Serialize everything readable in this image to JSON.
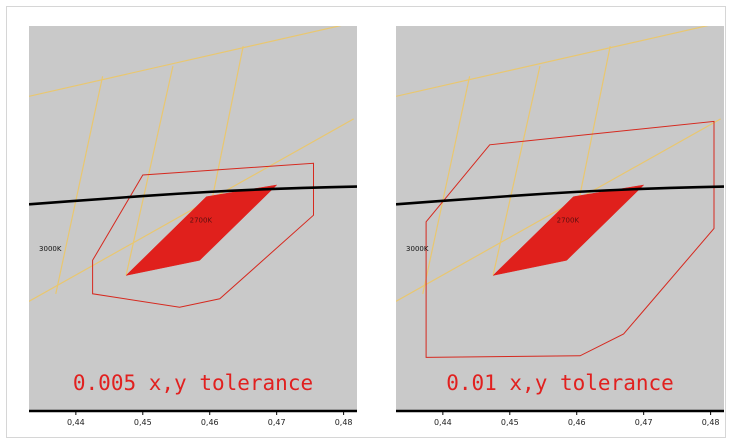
{
  "chart_data": [
    {
      "type": "scatter",
      "title": "0.005 x,y tolerance",
      "xlim": [
        0.433,
        0.482
      ],
      "x_ticks": [
        "0,44",
        "0,45",
        "0,46",
        "0,47",
        "0,48"
      ],
      "x_tick_values": [
        0.44,
        0.45,
        0.46,
        0.47,
        0.48
      ],
      "cct_labels": [
        {
          "text": "3000K",
          "x": 0.4345,
          "y": 0.3855
        },
        {
          "text": "2700K",
          "x": 0.457,
          "y": 0.4025
        }
      ],
      "planckian_locus": [
        [
          0.433,
          0.4135
        ],
        [
          0.445,
          0.417
        ],
        [
          0.455,
          0.4198
        ],
        [
          0.465,
          0.422
        ],
        [
          0.474,
          0.4233
        ],
        [
          0.482,
          0.4241
        ]
      ],
      "target_quadrangle": [
        [
          0.4475,
          0.371
        ],
        [
          0.4585,
          0.38
        ],
        [
          0.47,
          0.425
        ],
        [
          0.4595,
          0.418
        ]
      ],
      "tolerance_polygon": [
        [
          0.4425,
          0.38
        ],
        [
          0.4425,
          0.36
        ],
        [
          0.4555,
          0.352
        ],
        [
          0.4615,
          0.357
        ],
        [
          0.4755,
          0.407
        ],
        [
          0.4755,
          0.438
        ],
        [
          0.45,
          0.431
        ],
        [
          0.4425,
          0.38
        ]
      ],
      "grid_lines": [
        [
          [
            0.433,
            0.3555
          ],
          [
            0.4815,
            0.4645
          ]
        ],
        [
          [
            0.433,
            0.478
          ],
          [
            0.4815,
            0.522
          ]
        ],
        [
          [
            0.437,
            0.36
          ],
          [
            0.444,
            0.49
          ]
        ],
        [
          [
            0.4475,
            0.371
          ],
          [
            0.4545,
            0.496
          ]
        ],
        [
          [
            0.4585,
            0.38
          ],
          [
            0.465,
            0.508
          ]
        ]
      ],
      "colors": {
        "background": "#c9c9c9",
        "locus": "#000000",
        "grid": "#e9c770",
        "tolerance": "#d6291f",
        "target": "#e0201c",
        "caption": "#e1201f"
      }
    },
    {
      "type": "scatter",
      "title": "0.01 x,y tolerance",
      "xlim": [
        0.433,
        0.482
      ],
      "x_ticks": [
        "0,44",
        "0,45",
        "0,46",
        "0,47",
        "0,48"
      ],
      "x_tick_values": [
        0.44,
        0.45,
        0.46,
        0.47,
        0.48
      ],
      "cct_labels": [
        {
          "text": "3000K",
          "x": 0.4345,
          "y": 0.3855
        },
        {
          "text": "2700K",
          "x": 0.457,
          "y": 0.4025
        }
      ],
      "planckian_locus": [
        [
          0.433,
          0.4135
        ],
        [
          0.445,
          0.417
        ],
        [
          0.455,
          0.4198
        ],
        [
          0.465,
          0.422
        ],
        [
          0.474,
          0.4233
        ],
        [
          0.482,
          0.4241
        ]
      ],
      "target_quadrangle": [
        [
          0.4475,
          0.371
        ],
        [
          0.4585,
          0.38
        ],
        [
          0.47,
          0.425
        ],
        [
          0.4595,
          0.418
        ]
      ],
      "tolerance_polygon": [
        [
          0.4375,
          0.403
        ],
        [
          0.4375,
          0.322
        ],
        [
          0.4605,
          0.323
        ],
        [
          0.467,
          0.336
        ],
        [
          0.4805,
          0.399
        ],
        [
          0.4805,
          0.463
        ],
        [
          0.447,
          0.449
        ],
        [
          0.4375,
          0.403
        ]
      ],
      "grid_lines": [
        [
          [
            0.433,
            0.3555
          ],
          [
            0.4815,
            0.4645
          ]
        ],
        [
          [
            0.433,
            0.478
          ],
          [
            0.4815,
            0.522
          ]
        ],
        [
          [
            0.437,
            0.36
          ],
          [
            0.444,
            0.49
          ]
        ],
        [
          [
            0.4475,
            0.371
          ],
          [
            0.4545,
            0.496
          ]
        ],
        [
          [
            0.4585,
            0.38
          ],
          [
            0.465,
            0.508
          ]
        ]
      ],
      "colors": {
        "background": "#c9c9c9",
        "locus": "#000000",
        "grid": "#e9c770",
        "tolerance": "#d6291f",
        "target": "#e0201c",
        "caption": "#e1201f"
      }
    }
  ]
}
